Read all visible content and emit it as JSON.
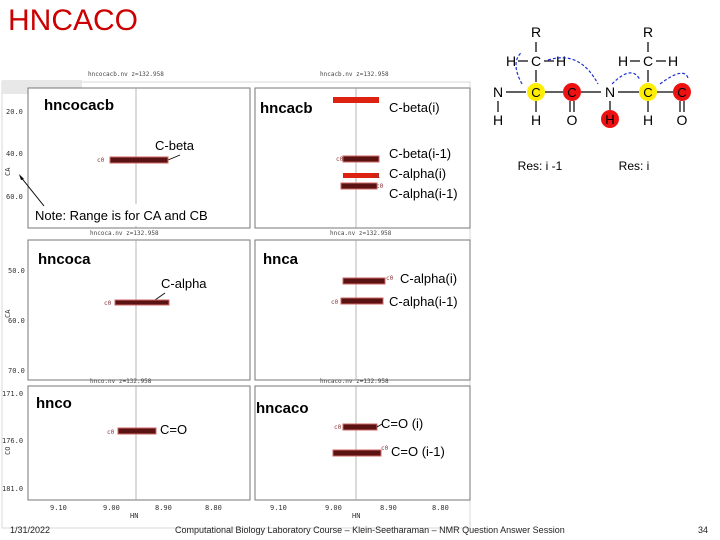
{
  "slide": {
    "title": "HNCACO",
    "footer_date": "1/31/2022",
    "footer_text": "Computational Biology Laboratory Course – Klein-Seetharaman – NMR Question Answer Session",
    "page_number": "34"
  },
  "panels": {
    "hncocacb": {
      "header": "hncocacb.nv z=132.958",
      "name": "hncocacb",
      "annotation": "C-beta",
      "peak_tag": "c0"
    },
    "hncacb": {
      "header": "hncacb.nv z=132.958",
      "name": "hncacb",
      "annotations": [
        "C-beta(i)",
        "C-beta(i-1)",
        "C-alpha(i)",
        "C-alpha(i-1)"
      ],
      "peak_tags": [
        "c0",
        "c0",
        "c1",
        "c0"
      ]
    },
    "hncoca": {
      "header": "hncoca.nv z=132.958",
      "name": "hncoca",
      "annotation": "C-alpha",
      "peak_tag": "c0"
    },
    "hnca": {
      "header": "hnca.nv z=132.958",
      "name": "hnca",
      "annotations": [
        "C-alpha(i)",
        "C-alpha(i-1)"
      ],
      "peak_tags": [
        "c0",
        "c0"
      ]
    },
    "hnco": {
      "header": "hnco.nv z=132.958",
      "name": "hnco",
      "annotation": "C=O",
      "peak_tag": "c0"
    },
    "hncaco": {
      "header": "hncaco.nv z=132.958",
      "name": "hncaco",
      "annotations": [
        "C=O (i)",
        "C=O (i-1)"
      ],
      "peak_tags": [
        "c0",
        "c0"
      ]
    }
  },
  "axes": {
    "y_label_ca": "CA",
    "y_label_co": "CO",
    "x_label": "HN",
    "row1_ticks": [
      "20.0",
      "40.0",
      "60.0"
    ],
    "row2_ticks": [
      "50.0",
      "60.0",
      "70.0"
    ],
    "row3_ticks": [
      "171.0",
      "176.0",
      "181.0"
    ],
    "x_ticks": [
      "9.10",
      "9.00",
      "8.90",
      "8.80"
    ]
  },
  "note": "Note: Range is for CA and CB",
  "structure": {
    "residue_prev_label": "Res: i -1",
    "residue_curr_label": "Res: i",
    "atom_r": "R",
    "atom_c": "C",
    "atom_h": "H",
    "atom_n": "N",
    "atom_o": "O",
    "highlight_yellow": "#ffee00",
    "highlight_red": "#ee1111",
    "arrow_blue": "#1a2fd0"
  },
  "colors": {
    "title": "#cc0000",
    "peak_fill": "#5a1212",
    "peak_outline": "#cc6666",
    "peak_bright": "#dd2211"
  }
}
